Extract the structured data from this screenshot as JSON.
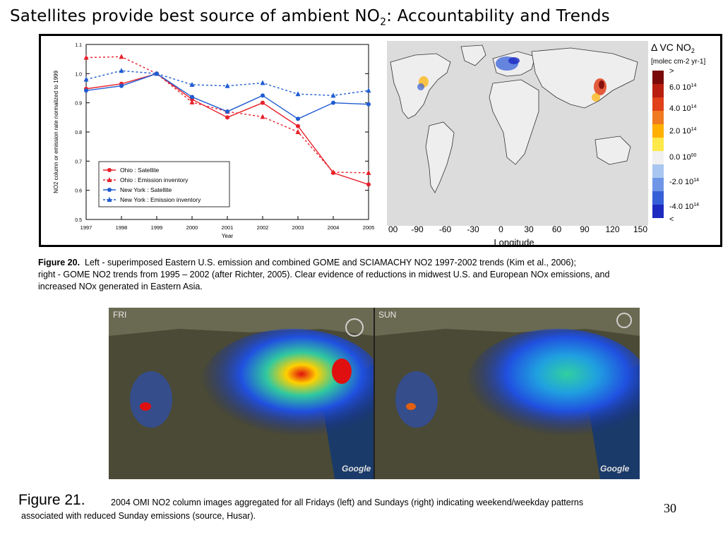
{
  "slide": {
    "title_main": "Satellites provide best source of ambient NO",
    "title_sub": "2",
    "title_rest": ": Accountability and Trends",
    "page_number": "30"
  },
  "figure20": {
    "caption_label": "Figure 20.",
    "caption_line1": "Left - superimposed Eastern U.S. emission and combined GOME and SCIAMACHY NO2 1997-2002 trends (Kim et al., 2006);",
    "caption_line2": "right - GOME NO2 trends from 1995 – 2002 (after Richter, 2005). Clear evidence of reductions in midwest U.S. and European NOx emissions, and",
    "caption_line3": "increased NOx generated in Eastern Asia."
  },
  "chart_data": {
    "type": "line",
    "x": [
      1997,
      1998,
      1999,
      2000,
      2001,
      2002,
      2003,
      2004,
      2005
    ],
    "xlabel": "Year",
    "ylabel": "NO2 column or emission rate normalized to 1999",
    "ylim": [
      0.5,
      1.1
    ],
    "yticks": [
      "0.5",
      "0.6",
      "0.7",
      "0.8",
      "0.9",
      "1.0",
      "1.1"
    ],
    "xticks": [
      "1997",
      "1998",
      "1999",
      "2000",
      "2001",
      "2002",
      "2003",
      "2004",
      "2005"
    ],
    "legend_position": "bottom-left",
    "series": [
      {
        "name": "Ohio : Satellite",
        "color": "#e8212b",
        "dashed": false,
        "marker": "circle",
        "values": [
          0.948,
          0.965,
          1.0,
          0.912,
          0.85,
          0.9,
          0.82,
          0.66,
          0.62
        ]
      },
      {
        "name": "Ohio : Emission inventory",
        "color": "#e8212b",
        "dashed": true,
        "marker": "triangle",
        "values": [
          1.055,
          1.058,
          1.0,
          0.902,
          0.87,
          0.852,
          0.8,
          0.662,
          0.66
        ]
      },
      {
        "name": "New York : Satellite",
        "color": "#1f5bd1",
        "dashed": false,
        "marker": "circle",
        "values": [
          0.942,
          0.958,
          1.0,
          0.92,
          0.87,
          0.925,
          0.845,
          0.9,
          0.895
        ]
      },
      {
        "name": "New York : Emission inventory",
        "color": "#1f5bd1",
        "dashed": true,
        "marker": "triangle",
        "values": [
          0.98,
          1.01,
          1.0,
          0.962,
          0.958,
          0.968,
          0.93,
          0.925,
          0.942
        ]
      }
    ]
  },
  "trend_map": {
    "legend_title": "Δ VC NO",
    "legend_title_sub": "2",
    "legend_units": "[molec cm-2 yr-1]",
    "legend_entries": [
      ">",
      "6.0 10",
      "4.0 10",
      "2.0 10",
      "0.0 10",
      "-2.0 10",
      "-4.0 10",
      "<"
    ],
    "legend_exponents": [
      "",
      "14",
      "14",
      "14",
      "00",
      "14",
      "14",
      ""
    ],
    "legend_colors": [
      "#7a0a0a",
      "#b81f10",
      "#e0401a",
      "#f07a22",
      "#ffb000",
      "#ffe84a",
      "#f0f0f0",
      "#a9c6f0",
      "#6f95e6",
      "#3660d8",
      "#1c2ac0"
    ],
    "x_ticks": [
      "-90",
      "-60",
      "-30",
      "0",
      "30",
      "60",
      "90",
      "120",
      "150"
    ],
    "x_tick_left": "00",
    "x_label": "Longitude"
  },
  "omi_images": {
    "left_label": "FRI",
    "right_label": "SUN",
    "google_label": "Google"
  },
  "figure21": {
    "caption_label": "Figure 21.",
    "caption_line1": "2004 OMI NO2 column images aggregated for all Fridays (left) and Sundays (right) indicating weekend/weekday patterns",
    "caption_line2": "associated with reduced Sunday emissions (source, Husar)."
  }
}
